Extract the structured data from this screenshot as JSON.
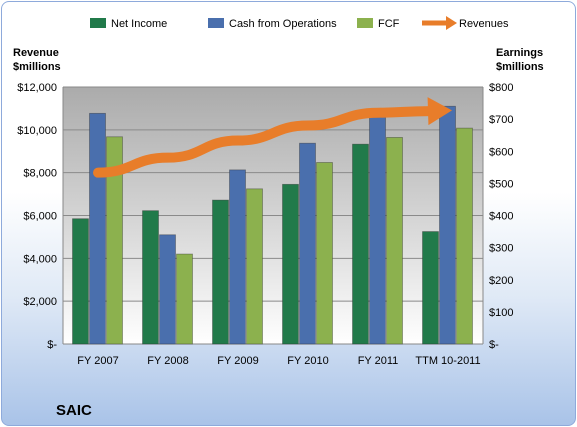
{
  "chart_data": {
    "type": "bar",
    "company": "SAIC",
    "categories": [
      "FY 2007",
      "FY 2008",
      "FY 2009",
      "FY 2010",
      "FY 2011",
      "TTM 10-2011"
    ],
    "series": [
      {
        "name": "Net Income",
        "axis": "right",
        "color": "#217a4a",
        "values": [
          390,
          415,
          448,
          497,
          622,
          350
        ]
      },
      {
        "name": "Cash from Operations",
        "axis": "right",
        "color": "#4a6fad",
        "values": [
          718,
          340,
          542,
          625,
          713,
          740
        ]
      },
      {
        "name": "FCF",
        "axis": "right",
        "color": "#8cb14e",
        "values": [
          645,
          280,
          483,
          565,
          643,
          672
        ]
      }
    ],
    "line_series": {
      "name": "Revenues",
      "axis": "left",
      "color": "#e87d2a",
      "values": [
        8000,
        8700,
        9500,
        10200,
        10800,
        10900
      ]
    },
    "y_left": {
      "title_line1": "Revenue",
      "title_line2": "$millions",
      "ylim": [
        0,
        12000
      ],
      "ticks": [
        "$-",
        "$2,000",
        "$4,000",
        "$6,000",
        "$8,000",
        "$10,000",
        "$12,000"
      ]
    },
    "y_right": {
      "title_line1": "Earnings",
      "title_line2": "$millions",
      "ylim": [
        0,
        800
      ],
      "ticks": [
        "$-",
        "$100",
        "$200",
        "$300",
        "$400",
        "$500",
        "$600",
        "$700",
        "$800"
      ]
    },
    "legend_position": "top",
    "grid": true
  }
}
